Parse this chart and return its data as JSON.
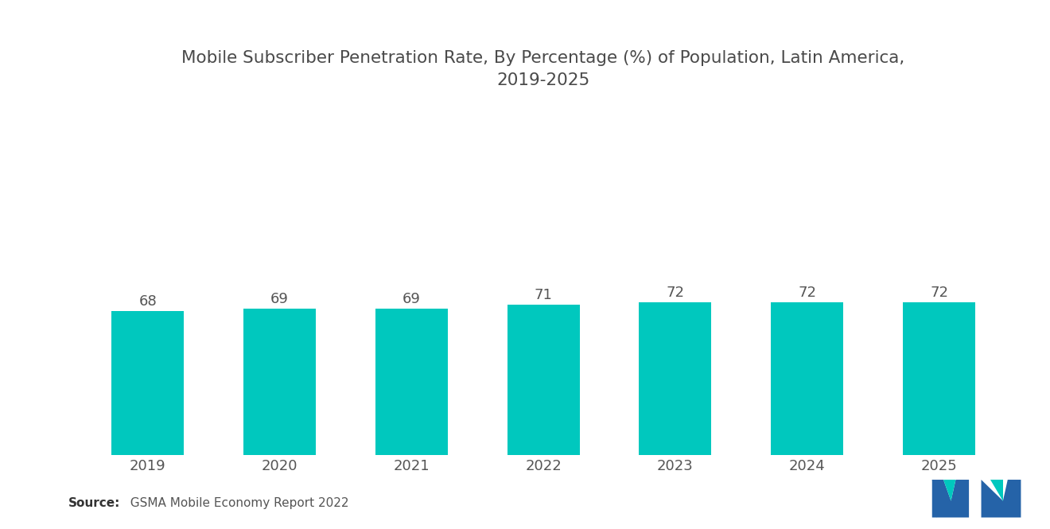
{
  "title": "Mobile Subscriber Penetration Rate, By Percentage (%) of Population, Latin America,\n2019-2025",
  "categories": [
    "2019",
    "2020",
    "2021",
    "2022",
    "2023",
    "2024",
    "2025"
  ],
  "values": [
    68,
    69,
    69,
    71,
    72,
    72,
    72
  ],
  "bar_color": "#00C8BE",
  "background_color": "#ffffff",
  "title_fontsize": 15.5,
  "label_fontsize": 13,
  "tick_fontsize": 13,
  "source_label": "Source:",
  "source_text": "  GSMA Mobile Economy Report 2022",
  "ylim": [
    0,
    160
  ],
  "bar_width": 0.55
}
